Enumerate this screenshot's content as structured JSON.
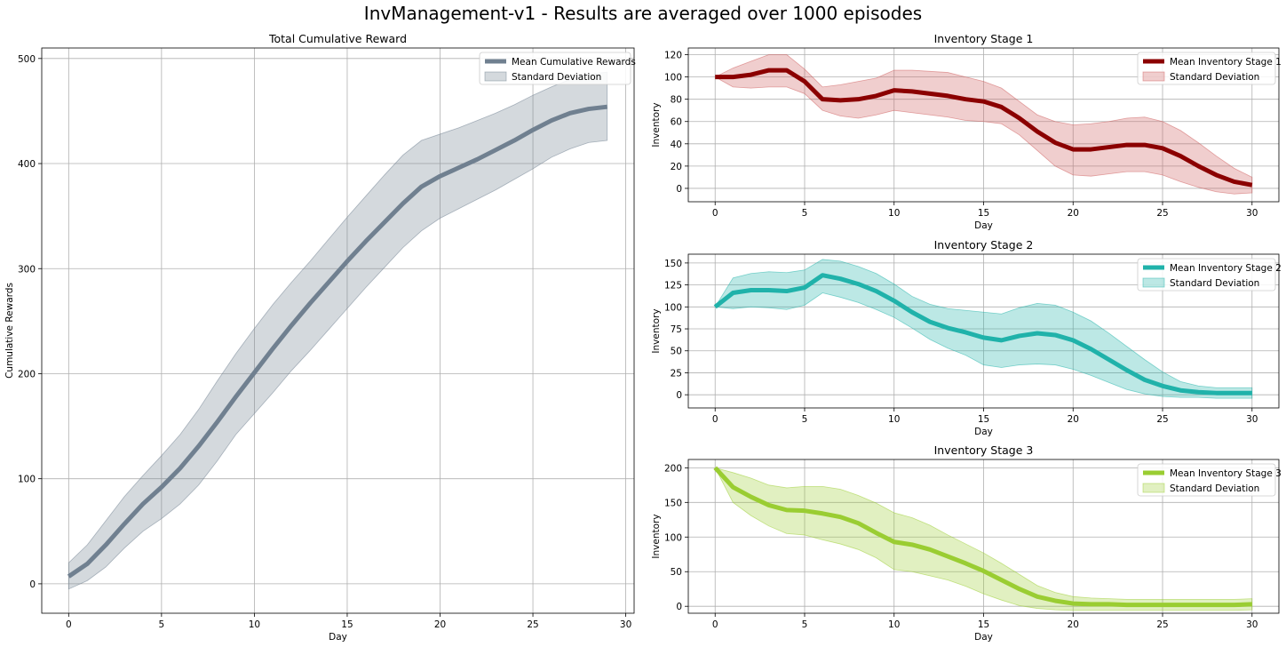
{
  "figure": {
    "title": "InvManagement-v1 - Results are averaged over 1000 episodes"
  },
  "chart_data": [
    {
      "id": "reward",
      "type": "line",
      "title": "Total Cumulative Reward",
      "xlabel": "Day",
      "ylabel": "Cumulative Rewards",
      "xlim": [
        -1.45,
        30.45
      ],
      "ylim": [
        -28,
        510
      ],
      "xticks": [
        0,
        5,
        10,
        15,
        20,
        25,
        30
      ],
      "yticks": [
        0,
        100,
        200,
        300,
        400,
        500
      ],
      "grid": true,
      "legend_position": "top-right",
      "color": "#708090",
      "series": [
        {
          "name": "Mean Cumulative Rewards",
          "x": [
            0,
            1,
            2,
            3,
            4,
            5,
            6,
            7,
            8,
            9,
            10,
            11,
            12,
            13,
            14,
            15,
            16,
            17,
            18,
            19,
            20,
            21,
            22,
            23,
            24,
            25,
            26,
            27,
            28,
            29
          ],
          "values": [
            7,
            19,
            37,
            57,
            76,
            92,
            110,
            131,
            154,
            178,
            201,
            224,
            246,
            267,
            287,
            307,
            326,
            344,
            362,
            378,
            388,
            396,
            404,
            413,
            422,
            432,
            441,
            448,
            452,
            454
          ]
        },
        {
          "name": "Standard Deviation",
          "band": true,
          "x": [
            0,
            1,
            2,
            3,
            4,
            5,
            6,
            7,
            8,
            9,
            10,
            11,
            12,
            13,
            14,
            15,
            16,
            17,
            18,
            19,
            20,
            21,
            22,
            23,
            24,
            25,
            26,
            27,
            28,
            29
          ],
          "upper": [
            20,
            37,
            60,
            83,
            103,
            122,
            142,
            166,
            193,
            219,
            243,
            266,
            287,
            307,
            328,
            349,
            369,
            389,
            408,
            422,
            428,
            434,
            441,
            448,
            456,
            465,
            473,
            480,
            485,
            487
          ],
          "lower": [
            -5,
            3,
            16,
            34,
            50,
            62,
            76,
            94,
            117,
            142,
            162,
            182,
            203,
            222,
            242,
            262,
            282,
            301,
            320,
            336,
            348,
            357,
            366,
            375,
            385,
            395,
            406,
            414,
            420,
            422
          ]
        }
      ]
    },
    {
      "id": "stage1",
      "type": "line",
      "title": "Inventory Stage 1",
      "xlabel": "Day",
      "ylabel": "Inventory",
      "xlim": [
        -1.5,
        31.5
      ],
      "ylim": [
        -12,
        126
      ],
      "xticks": [
        0,
        5,
        10,
        15,
        20,
        25,
        30
      ],
      "yticks": [
        0,
        20,
        40,
        60,
        80,
        100,
        120
      ],
      "grid": true,
      "legend_position": "top-right",
      "color": "#8b0000",
      "band_color": "#cd5c5c",
      "series": [
        {
          "name": "Mean Inventory Stage 1",
          "x": [
            0,
            1,
            2,
            3,
            4,
            5,
            6,
            7,
            8,
            9,
            10,
            11,
            12,
            13,
            14,
            15,
            16,
            17,
            18,
            19,
            20,
            21,
            22,
            23,
            24,
            25,
            26,
            27,
            28,
            29,
            30
          ],
          "values": [
            100,
            100,
            102,
            106,
            106,
            96,
            80,
            79,
            80,
            83,
            88,
            87,
            85,
            83,
            80,
            78,
            73,
            63,
            51,
            41,
            35,
            35,
            37,
            39,
            39,
            36,
            29,
            20,
            12,
            6,
            3
          ]
        },
        {
          "name": "Standard Deviation",
          "band": true,
          "x": [
            0,
            1,
            2,
            3,
            4,
            5,
            6,
            7,
            8,
            9,
            10,
            11,
            12,
            13,
            14,
            15,
            16,
            17,
            18,
            19,
            20,
            21,
            22,
            23,
            24,
            25,
            26,
            27,
            28,
            29,
            30
          ],
          "upper": [
            100,
            108,
            114,
            120,
            120,
            107,
            91,
            93,
            96,
            99,
            106,
            106,
            105,
            104,
            100,
            96,
            90,
            78,
            66,
            60,
            57,
            58,
            60,
            63,
            64,
            60,
            52,
            41,
            29,
            18,
            10
          ],
          "lower": [
            100,
            91,
            90,
            91,
            91,
            85,
            70,
            65,
            63,
            66,
            70,
            68,
            66,
            64,
            61,
            60,
            58,
            48,
            34,
            20,
            12,
            11,
            13,
            15,
            15,
            12,
            6,
            1,
            -3,
            -5,
            -4
          ]
        }
      ]
    },
    {
      "id": "stage2",
      "type": "line",
      "title": "Inventory Stage 2",
      "xlabel": "Day",
      "ylabel": "Inventory",
      "xlim": [
        -1.5,
        31.5
      ],
      "ylim": [
        -15,
        160
      ],
      "xticks": [
        0,
        5,
        10,
        15,
        20,
        25,
        30
      ],
      "yticks": [
        0,
        25,
        50,
        75,
        100,
        125,
        150
      ],
      "grid": true,
      "legend_position": "top-right",
      "color": "#20b2aa",
      "band_color": "#20b2aa",
      "series": [
        {
          "name": "Mean Inventory Stage 2",
          "x": [
            0,
            1,
            2,
            3,
            4,
            5,
            6,
            7,
            8,
            9,
            10,
            11,
            12,
            13,
            14,
            15,
            16,
            17,
            18,
            19,
            20,
            21,
            22,
            23,
            24,
            25,
            26,
            27,
            28,
            29,
            30
          ],
          "values": [
            100,
            116,
            119,
            119,
            118,
            122,
            136,
            132,
            126,
            118,
            107,
            94,
            83,
            76,
            71,
            65,
            62,
            67,
            70,
            68,
            62,
            52,
            40,
            28,
            17,
            10,
            5,
            3,
            2,
            2,
            2
          ]
        },
        {
          "name": "Standard Deviation",
          "band": true,
          "x": [
            0,
            1,
            2,
            3,
            4,
            5,
            6,
            7,
            8,
            9,
            10,
            11,
            12,
            13,
            14,
            15,
            16,
            17,
            18,
            19,
            20,
            21,
            22,
            23,
            24,
            25,
            26,
            27,
            28,
            29,
            30
          ],
          "upper": [
            100,
            133,
            138,
            140,
            139,
            142,
            154,
            152,
            146,
            138,
            126,
            112,
            103,
            98,
            96,
            94,
            92,
            99,
            104,
            102,
            94,
            84,
            70,
            55,
            40,
            26,
            15,
            10,
            8,
            8,
            8
          ],
          "lower": [
            100,
            98,
            100,
            99,
            97,
            102,
            116,
            111,
            105,
            97,
            88,
            76,
            63,
            53,
            45,
            34,
            31,
            34,
            35,
            34,
            29,
            22,
            14,
            6,
            1,
            -2,
            -3,
            -3,
            -4,
            -4,
            -4
          ]
        }
      ]
    },
    {
      "id": "stage3",
      "type": "line",
      "title": "Inventory Stage 3",
      "xlabel": "Day",
      "ylabel": "Inventory",
      "xlim": [
        -1.5,
        31.5
      ],
      "ylim": [
        -10,
        212
      ],
      "xticks": [
        0,
        5,
        10,
        15,
        20,
        25,
        30
      ],
      "yticks": [
        0,
        50,
        100,
        150,
        200
      ],
      "grid": true,
      "legend_position": "top-right",
      "color": "#9acd32",
      "band_color": "#9acd32",
      "series": [
        {
          "name": "Mean Inventory Stage 3",
          "x": [
            0,
            1,
            2,
            3,
            4,
            5,
            6,
            7,
            8,
            9,
            10,
            11,
            12,
            13,
            14,
            15,
            16,
            17,
            18,
            19,
            20,
            21,
            22,
            23,
            24,
            25,
            26,
            27,
            28,
            29,
            30
          ],
          "values": [
            200,
            172,
            158,
            146,
            139,
            138,
            134,
            129,
            120,
            106,
            93,
            89,
            82,
            72,
            62,
            51,
            38,
            25,
            14,
            8,
            4,
            3,
            3,
            2,
            2,
            2,
            2,
            2,
            2,
            2,
            3
          ]
        },
        {
          "name": "Standard Deviation",
          "band": true,
          "x": [
            0,
            1,
            2,
            3,
            4,
            5,
            6,
            7,
            8,
            9,
            10,
            11,
            12,
            13,
            14,
            15,
            16,
            17,
            18,
            19,
            20,
            21,
            22,
            23,
            24,
            25,
            26,
            27,
            28,
            29,
            30
          ],
          "upper": [
            200,
            193,
            185,
            175,
            171,
            173,
            173,
            169,
            160,
            149,
            135,
            128,
            117,
            103,
            90,
            77,
            62,
            46,
            30,
            20,
            14,
            12,
            11,
            10,
            10,
            10,
            10,
            10,
            10,
            10,
            11
          ],
          "lower": [
            200,
            150,
            131,
            116,
            105,
            103,
            96,
            90,
            82,
            70,
            53,
            50,
            44,
            38,
            29,
            18,
            9,
            1,
            -3,
            -5,
            -6,
            -6,
            -6,
            -6,
            -6,
            -6,
            -6,
            -6,
            -6,
            -6,
            -5
          ]
        }
      ]
    }
  ]
}
